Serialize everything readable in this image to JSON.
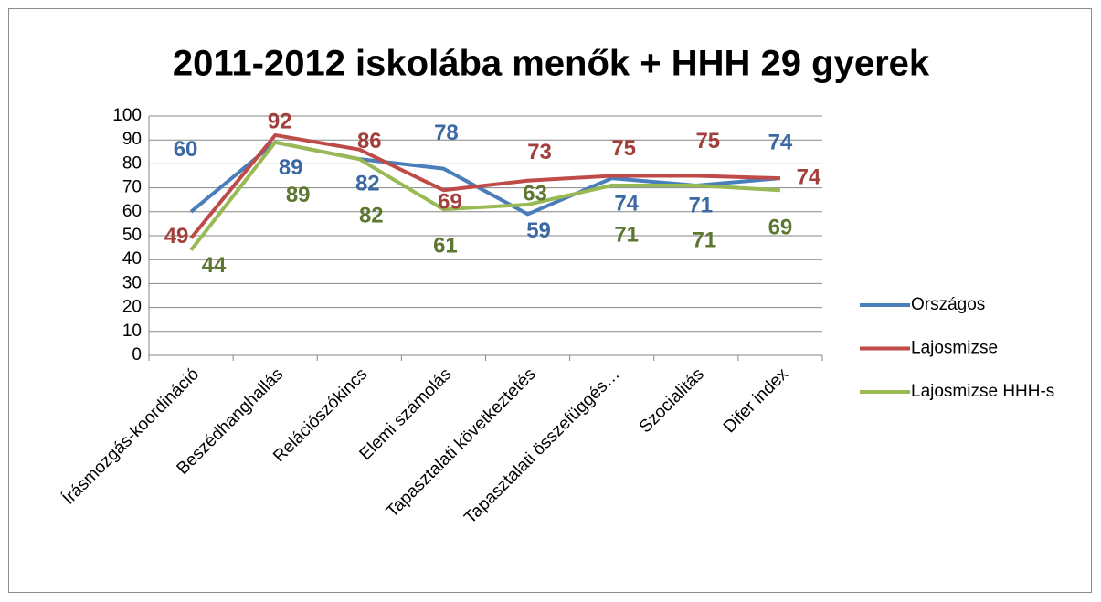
{
  "chart_data": {
    "type": "line",
    "title": "2011-2012 iskolába menők + HHH 29 gyerek",
    "categories": [
      "Írásmozgás-koordináció",
      "Beszédhanghallás",
      "Relációszókincs",
      "Elemi számolás",
      "Tapasztalati következtetés",
      "Tapasztalati összefüggés…",
      "Szocialitás",
      "Difer index"
    ],
    "series": [
      {
        "name": "Országos",
        "color": "#4a7ebb",
        "label_color": "#3c69a3",
        "values": [
          60,
          89,
          82,
          78,
          59,
          74,
          71,
          74
        ]
      },
      {
        "name": "Lajosmizse",
        "color": "#be4b48",
        "label_color": "#a23f3b",
        "values": [
          49,
          92,
          86,
          69,
          73,
          75,
          75,
          74
        ]
      },
      {
        "name": "Lajosmizse HHH-s",
        "color": "#98b954",
        "label_color": "#5d7630",
        "values": [
          44,
          89,
          82,
          61,
          63,
          71,
          71,
          69
        ]
      }
    ],
    "ylim": [
      0,
      100
    ],
    "yticks": [
      0,
      10,
      20,
      30,
      40,
      50,
      60,
      70,
      80,
      90,
      100
    ],
    "grid": true,
    "legend": "right"
  }
}
